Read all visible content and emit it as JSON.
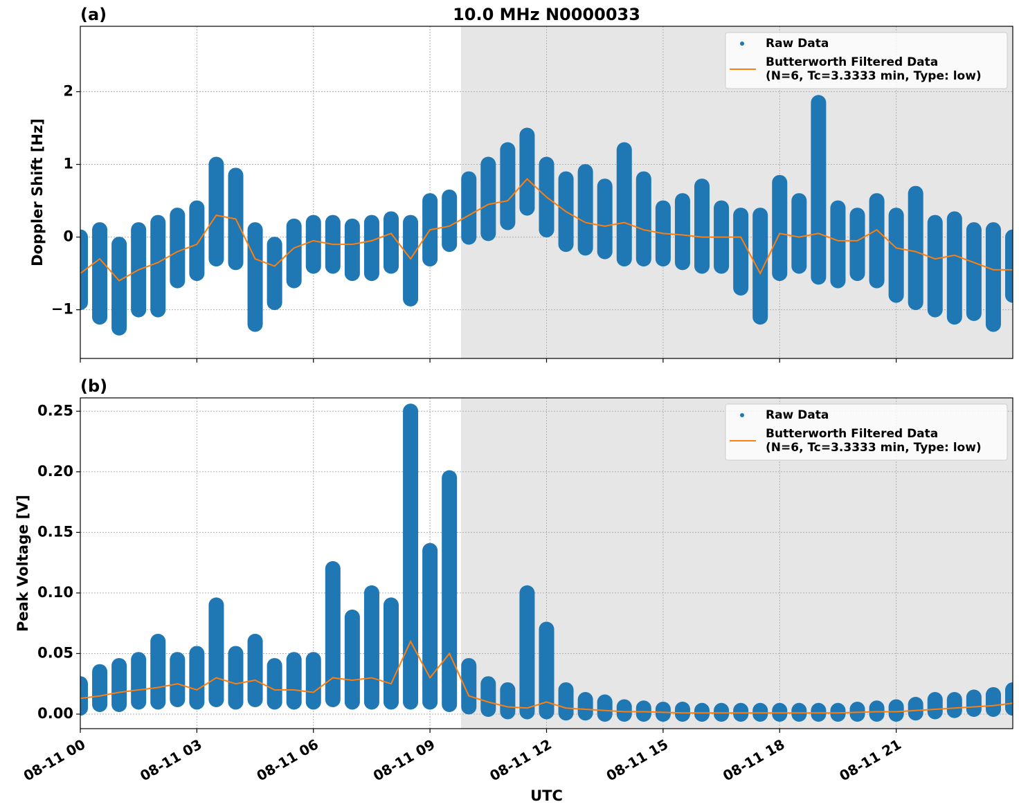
{
  "chart_data": [
    {
      "type": "timeseries",
      "panel_label": "(a)",
      "title": "10.0 MHz N0000033",
      "ylabel": "Doppler Shift [Hz]",
      "xlim": [
        0,
        24
      ],
      "xticks": [
        0,
        3,
        6,
        9,
        12,
        15,
        18,
        21
      ],
      "xticklabels": false,
      "ylim": [
        -1.67,
        2.9
      ],
      "yticks": [
        {
          "value": -1,
          "label": "−1"
        },
        0,
        1,
        2
      ],
      "grid": true,
      "shade_x": [
        9.8,
        24
      ],
      "legend": "upper right",
      "x": [
        0,
        0.5,
        1,
        1.5,
        2,
        2.5,
        3,
        3.5,
        4,
        4.5,
        5,
        5.5,
        6,
        6.5,
        7,
        7.5,
        8,
        8.5,
        9,
        9.5,
        10,
        10.5,
        11,
        11.5,
        12,
        12.5,
        13,
        13.5,
        14,
        14.5,
        15,
        15.5,
        16,
        16.5,
        17,
        17.5,
        18,
        18.5,
        19,
        19.5,
        20,
        20.5,
        21,
        21.5,
        22,
        22.5,
        23,
        23.5,
        24
      ],
      "series": [
        {
          "name": "Raw Data",
          "color": "#1f77b4",
          "high": [
            0.0,
            0.1,
            -0.1,
            0.1,
            0.2,
            0.3,
            0.4,
            1.0,
            0.85,
            0.1,
            -0.1,
            0.15,
            0.2,
            0.2,
            0.15,
            0.2,
            0.25,
            0.2,
            0.5,
            0.55,
            0.8,
            1.0,
            1.2,
            1.4,
            1.0,
            0.8,
            0.9,
            0.7,
            1.2,
            0.8,
            0.4,
            0.5,
            0.7,
            0.4,
            0.3,
            0.3,
            0.75,
            0.5,
            1.85,
            0.4,
            0.3,
            0.5,
            0.3,
            0.6,
            0.2,
            0.25,
            0.1,
            0.1,
            0.0
          ],
          "low": [
            -0.9,
            -1.1,
            -1.25,
            -1.0,
            -1.0,
            -0.6,
            -0.5,
            -0.3,
            -0.35,
            -1.2,
            -0.9,
            -0.6,
            -0.4,
            -0.4,
            -0.5,
            -0.5,
            -0.4,
            -0.85,
            -0.3,
            -0.1,
            0.0,
            0.05,
            0.2,
            0.4,
            0.1,
            -0.1,
            -0.15,
            -0.2,
            -0.3,
            -0.3,
            -0.3,
            -0.35,
            -0.4,
            -0.4,
            -0.7,
            -1.1,
            -0.5,
            -0.4,
            -0.55,
            -0.6,
            -0.5,
            -0.6,
            -0.8,
            -0.9,
            -1.0,
            -1.1,
            -1.05,
            -1.2,
            -0.8
          ]
        },
        {
          "name": "Butterworth Filtered Data\n(N=6, Tc=3.3333 min, Type: low)",
          "color": "#ff7f0e",
          "values": [
            -0.5,
            -0.3,
            -0.6,
            -0.45,
            -0.35,
            -0.2,
            -0.1,
            0.3,
            0.25,
            -0.3,
            -0.4,
            -0.15,
            -0.05,
            -0.1,
            -0.1,
            -0.05,
            0.05,
            -0.3,
            0.1,
            0.15,
            0.3,
            0.45,
            0.5,
            0.8,
            0.55,
            0.35,
            0.2,
            0.15,
            0.2,
            0.1,
            0.05,
            0.03,
            0.0,
            0.0,
            0.0,
            -0.5,
            0.05,
            0.0,
            0.05,
            -0.05,
            -0.05,
            0.1,
            -0.15,
            -0.2,
            -0.3,
            -0.25,
            -0.35,
            -0.45,
            -0.45
          ]
        }
      ]
    },
    {
      "type": "timeseries",
      "panel_label": "(b)",
      "ylabel": "Peak Voltage [V]",
      "xlabel": "UTC",
      "xlim": [
        0,
        24
      ],
      "xticks": [
        {
          "value": 0,
          "label": "08-11 00"
        },
        {
          "value": 3,
          "label": "08-11 03"
        },
        {
          "value": 6,
          "label": "08-11 06"
        },
        {
          "value": 9,
          "label": "08-11 09"
        },
        {
          "value": 12,
          "label": "08-11 12"
        },
        {
          "value": 15,
          "label": "08-11 15"
        },
        {
          "value": 18,
          "label": "08-11 18"
        },
        {
          "value": 21,
          "label": "08-11 21"
        }
      ],
      "xticklabels": true,
      "ylim": [
        -0.012,
        0.261
      ],
      "yticks": [
        {
          "value": 0,
          "label": "0.00"
        },
        {
          "value": 0.05,
          "label": "0.05"
        },
        {
          "value": 0.1,
          "label": "0.10"
        },
        {
          "value": 0.15,
          "label": "0.15"
        },
        {
          "value": 0.2,
          "label": "0.20"
        },
        {
          "value": 0.25,
          "label": "0.25"
        }
      ],
      "grid": true,
      "shade_x": [
        9.8,
        24
      ],
      "legend": "upper right",
      "x": [
        0,
        0.5,
        1,
        1.5,
        2,
        2.5,
        3,
        3.5,
        4,
        4.5,
        5,
        5.5,
        6,
        6.5,
        7,
        7.5,
        8,
        8.5,
        9,
        9.5,
        10,
        10.5,
        11,
        11.5,
        12,
        12.5,
        13,
        13.5,
        14,
        14.5,
        15,
        15.5,
        16,
        16.5,
        17,
        17.5,
        18,
        18.5,
        19,
        19.5,
        20,
        20.5,
        21,
        21.5,
        22,
        22.5,
        23,
        23.5,
        24
      ],
      "series": [
        {
          "name": "Raw Data",
          "color": "#1f77b4",
          "high": [
            0.025,
            0.035,
            0.04,
            0.045,
            0.06,
            0.045,
            0.05,
            0.09,
            0.05,
            0.06,
            0.04,
            0.045,
            0.045,
            0.12,
            0.08,
            0.1,
            0.09,
            0.25,
            0.135,
            0.195,
            0.04,
            0.025,
            0.02,
            0.1,
            0.07,
            0.02,
            0.012,
            0.01,
            0.006,
            0.005,
            0.004,
            0.004,
            0.003,
            0.003,
            0.003,
            0.003,
            0.003,
            0.003,
            0.003,
            0.003,
            0.004,
            0.005,
            0.006,
            0.008,
            0.012,
            0.012,
            0.014,
            0.016,
            0.02
          ],
          "low": [
            0.005,
            0.008,
            0.008,
            0.01,
            0.01,
            0.012,
            0.01,
            0.012,
            0.01,
            0.012,
            0.01,
            0.01,
            0.01,
            0.012,
            0.01,
            0.01,
            0.01,
            0.01,
            0.01,
            0.008,
            0.006,
            0.004,
            0.002,
            0.002,
            0.002,
            0.001,
            0.001,
            0,
            0,
            0,
            0,
            0,
            0,
            0,
            0,
            0,
            0,
            0,
            0,
            0,
            0,
            0,
            0,
            0.001,
            0.002,
            0.003,
            0.004,
            0.004,
            0.005
          ]
        },
        {
          "name": "Butterworth Filtered Data\n(N=6, Tc=3.3333 min, Type: low)",
          "color": "#ff7f0e",
          "values": [
            0.013,
            0.015,
            0.018,
            0.02,
            0.022,
            0.025,
            0.02,
            0.03,
            0.025,
            0.028,
            0.02,
            0.02,
            0.018,
            0.03,
            0.028,
            0.03,
            0.025,
            0.06,
            0.03,
            0.05,
            0.015,
            0.01,
            0.006,
            0.005,
            0.01,
            0.005,
            0.004,
            0.003,
            0.002,
            0.002,
            0.0015,
            0.001,
            0.001,
            0.001,
            0.001,
            0.001,
            0.001,
            0.001,
            0.001,
            0.001,
            0.0015,
            0.002,
            0.002,
            0.003,
            0.004,
            0.005,
            0.006,
            0.007,
            0.009
          ]
        }
      ]
    }
  ]
}
